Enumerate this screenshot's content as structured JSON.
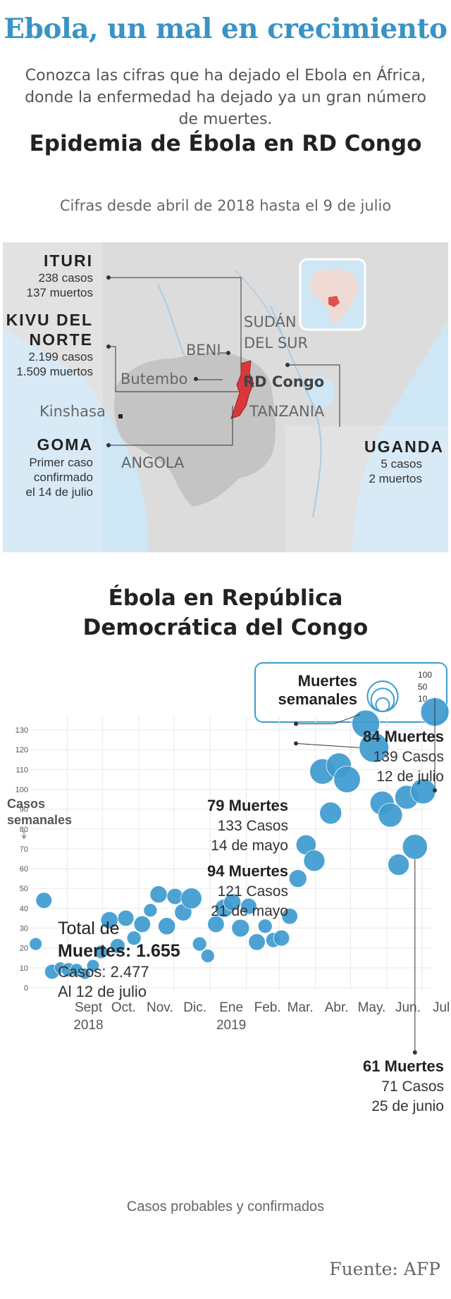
{
  "header": {
    "title": "Ebola, un mal en crecimiento",
    "intro": "Conozca las cifras que ha dejado el Ebola en África, donde la enfermedad ha dejado ya un gran número de muertes."
  },
  "map_section": {
    "title": "Epidemia de Ébola en RD Congo",
    "subtitle": "Cifras desde abril de 2018 hasta el 9 de julio",
    "regions": {
      "ituri": {
        "name": "ITURI",
        "line1": "238 casos",
        "line2": "137 muertos"
      },
      "kivu": {
        "name1": "KIVU DEL",
        "name2": "NORTE",
        "line1": "2.199 casos",
        "line2": "1.509 muertos"
      },
      "goma": {
        "name": "GOMA",
        "line1": "Primer caso",
        "line2": "confirmado",
        "line3": "el 14 de julio"
      },
      "uganda": {
        "name": "UGANDA",
        "line1": "5 casos",
        "line2": "2 muertos"
      }
    },
    "places": {
      "sudan1": "SUDÁN",
      "sudan2": "DEL SUR",
      "beni": "BENI",
      "butembo": "Butembo",
      "rdcongo": "RD Congo",
      "kinshasa": "Kinshasa",
      "tanzania": "TANZANIA",
      "angola": "ANGOLA"
    }
  },
  "chart_section": {
    "title_line1": "Ébola en República",
    "title_line2": "Democrática del Congo",
    "legend": {
      "title1": "Muertes",
      "title2": "semanales",
      "values": [
        "100",
        "50",
        "10"
      ]
    },
    "total": {
      "line1": "Total de",
      "line2": "Muertes: 1.655",
      "line3": "Casos: 2.477",
      "line4": "Al 12 de julio"
    },
    "annotations": [
      {
        "deaths": "84 Muertes",
        "cases": "139 Casos",
        "date": "12 de julio"
      },
      {
        "deaths": "79 Muertes",
        "cases": "133 Casos",
        "date": "14 de mayo"
      },
      {
        "deaths": "94 Muertes",
        "cases": "121 Casos",
        "date": "21 de mayo"
      },
      {
        "deaths": "61 Muertes",
        "cases": "71 Casos",
        "date": "25 de junio"
      }
    ],
    "footer": "Casos probables y confirmados"
  },
  "source": "Fuente: AFP",
  "colors": {
    "accent": "#3a93c4",
    "bubble": "#3d9cd0",
    "congo_red": "#d9383a",
    "water": "#cfe6f5"
  },
  "chart_data": {
    "type": "scatter",
    "ylabel": "Casos semanales",
    "xlabel": "Casos probables y confirmados",
    "ylim": [
      0,
      130
    ],
    "yticks": [
      0,
      10,
      20,
      30,
      40,
      50,
      60,
      70,
      80,
      90,
      100,
      110,
      120,
      130
    ],
    "xlim": [
      "2018-08-01",
      "2019-07-21"
    ],
    "xticks": [
      {
        "label": "Sept",
        "label2": "2018",
        "date": "2018-09-01"
      },
      {
        "label": "Oct.",
        "label2": "",
        "date": "2018-10-01"
      },
      {
        "label": "Nov.",
        "label2": "",
        "date": "2018-11-01"
      },
      {
        "label": "Dic.",
        "label2": "",
        "date": "2018-12-01"
      },
      {
        "label": "Ene",
        "label2": "2019",
        "date": "2019-01-01"
      },
      {
        "label": "Feb.",
        "label2": "",
        "date": "2019-02-01"
      },
      {
        "label": "Mar.",
        "label2": "",
        "date": "2019-03-01"
      },
      {
        "label": "Abr.",
        "label2": "",
        "date": "2019-04-01"
      },
      {
        "label": "May.",
        "label2": "",
        "date": "2019-05-01"
      },
      {
        "label": "Jun.",
        "label2": "",
        "date": "2019-06-01"
      },
      {
        "label": "Jul.",
        "label2": "",
        "date": "2019-07-01"
      }
    ],
    "size_legend": [
      100,
      50,
      10
    ],
    "points": [
      {
        "date": "2018-08-05",
        "cases": 22,
        "deaths": 8
      },
      {
        "date": "2018-08-12",
        "cases": 44,
        "deaths": 18
      },
      {
        "date": "2018-08-19",
        "cases": 8,
        "deaths": 14
      },
      {
        "date": "2018-08-26",
        "cases": 10,
        "deaths": 6
      },
      {
        "date": "2018-09-02",
        "cases": 9,
        "deaths": 12
      },
      {
        "date": "2018-09-09",
        "cases": 9,
        "deaths": 8
      },
      {
        "date": "2018-09-16",
        "cases": 7,
        "deaths": 5
      },
      {
        "date": "2018-09-23",
        "cases": 11,
        "deaths": 8
      },
      {
        "date": "2018-09-30",
        "cases": 18,
        "deaths": 10
      },
      {
        "date": "2018-10-07",
        "cases": 34,
        "deaths": 22
      },
      {
        "date": "2018-10-14",
        "cases": 21,
        "deaths": 14
      },
      {
        "date": "2018-10-21",
        "cases": 35,
        "deaths": 18
      },
      {
        "date": "2018-10-28",
        "cases": 25,
        "deaths": 12
      },
      {
        "date": "2018-11-04",
        "cases": 32,
        "deaths": 20
      },
      {
        "date": "2018-11-11",
        "cases": 39,
        "deaths": 10
      },
      {
        "date": "2018-11-18",
        "cases": 47,
        "deaths": 22
      },
      {
        "date": "2018-11-25",
        "cases": 31,
        "deaths": 22
      },
      {
        "date": "2018-12-02",
        "cases": 46,
        "deaths": 18
      },
      {
        "date": "2018-12-09",
        "cases": 38,
        "deaths": 22
      },
      {
        "date": "2018-12-16",
        "cases": 45,
        "deaths": 38
      },
      {
        "date": "2018-12-23",
        "cases": 22,
        "deaths": 12
      },
      {
        "date": "2018-12-30",
        "cases": 16,
        "deaths": 10
      },
      {
        "date": "2019-01-06",
        "cases": 32,
        "deaths": 20
      },
      {
        "date": "2019-01-13",
        "cases": 40,
        "deaths": 26
      },
      {
        "date": "2019-01-20",
        "cases": 43,
        "deaths": 22
      },
      {
        "date": "2019-01-27",
        "cases": 30,
        "deaths": 24
      },
      {
        "date": "2019-02-03",
        "cases": 41,
        "deaths": 18
      },
      {
        "date": "2019-02-10",
        "cases": 23,
        "deaths": 20
      },
      {
        "date": "2019-02-17",
        "cases": 31,
        "deaths": 12
      },
      {
        "date": "2019-02-24",
        "cases": 24,
        "deaths": 14
      },
      {
        "date": "2019-03-03",
        "cases": 25,
        "deaths": 18
      },
      {
        "date": "2019-03-10",
        "cases": 36,
        "deaths": 18
      },
      {
        "date": "2019-03-17",
        "cases": 55,
        "deaths": 24
      },
      {
        "date": "2019-03-24",
        "cases": 72,
        "deaths": 34
      },
      {
        "date": "2019-03-31",
        "cases": 64,
        "deaths": 40
      },
      {
        "date": "2019-04-07",
        "cases": 109,
        "deaths": 64
      },
      {
        "date": "2019-04-14",
        "cases": 88,
        "deaths": 44
      },
      {
        "date": "2019-04-21",
        "cases": 112,
        "deaths": 62
      },
      {
        "date": "2019-04-28",
        "cases": 105,
        "deaths": 72
      },
      {
        "date": "2019-05-14",
        "cases": 133,
        "deaths": 79
      },
      {
        "date": "2019-05-21",
        "cases": 121,
        "deaths": 94
      },
      {
        "date": "2019-05-28",
        "cases": 93,
        "deaths": 56
      },
      {
        "date": "2019-06-04",
        "cases": 87,
        "deaths": 56
      },
      {
        "date": "2019-06-11",
        "cases": 62,
        "deaths": 40
      },
      {
        "date": "2019-06-18",
        "cases": 96,
        "deaths": 54
      },
      {
        "date": "2019-06-25",
        "cases": 71,
        "deaths": 61
      },
      {
        "date": "2019-07-02",
        "cases": 99,
        "deaths": 62
      },
      {
        "date": "2019-07-12",
        "cases": 139,
        "deaths": 84
      }
    ]
  }
}
